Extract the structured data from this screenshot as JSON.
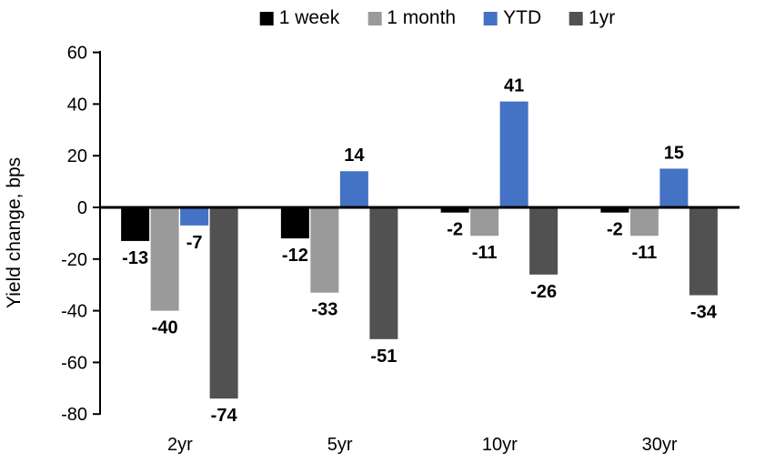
{
  "chart_data": {
    "type": "bar",
    "title": "",
    "xlabel": "",
    "ylabel": "Yield change, bps",
    "categories": [
      "2yr",
      "5yr",
      "10yr",
      "30yr"
    ],
    "series": [
      {
        "name": "1 week",
        "color": "#000000",
        "values": [
          -13,
          -12,
          -2,
          -2
        ]
      },
      {
        "name": "1 month",
        "color": "#9A9A9A",
        "values": [
          -40,
          -33,
          -11,
          -11
        ]
      },
      {
        "name": "YTD",
        "color": "#4472C4",
        "values": [
          -7,
          14,
          41,
          15
        ]
      },
      {
        "name": "1yr",
        "color": "#515151",
        "values": [
          -74,
          -51,
          -26,
          -34
        ]
      }
    ],
    "ylim": [
      -80,
      60
    ],
    "ytick_step": 20,
    "ytick_labels": [
      "60",
      "40",
      "20",
      "0",
      "-20",
      "-40",
      "-60",
      "-80"
    ],
    "legend_position": "top",
    "grid": false,
    "data_labels": true,
    "axis_color": "#000000",
    "background_color": "#ffffff"
  }
}
